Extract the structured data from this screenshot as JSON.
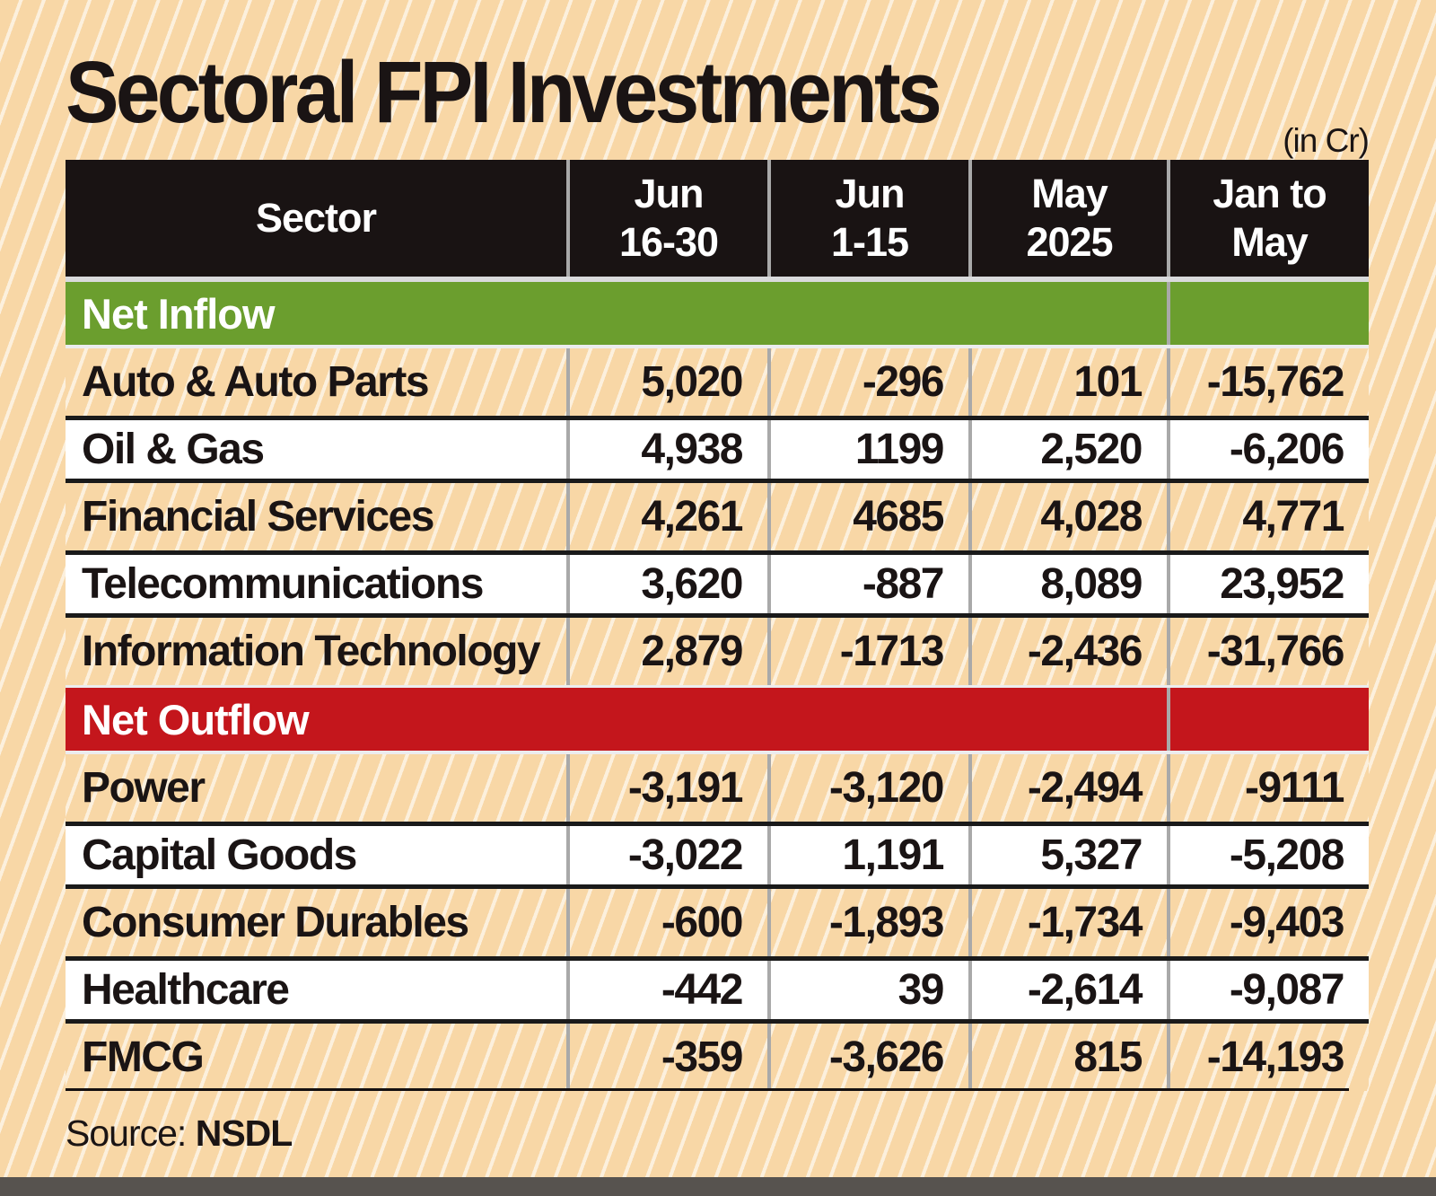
{
  "title": "Sectoral FPI Investments",
  "unit_note": "(in Cr)",
  "source": {
    "label": "Source:",
    "value": "NSDL"
  },
  "colors": {
    "background_peach": "#f8d7a6",
    "stripe": "#ffffff",
    "header_black": "#191313",
    "inflow_green": "#6b9e2e",
    "outflow_red": "#c4161c",
    "row_white": "#ffffff",
    "divider_gray": "#a9a9a9",
    "bottom_bar_gray": "#57534f",
    "text_dark": "#1a1414"
  },
  "chart_data": {
    "type": "table",
    "title": "Sectoral FPI Investments",
    "unit": "in Cr",
    "columns": [
      {
        "label": "Sector"
      },
      {
        "line1": "Jun",
        "line2": "16-30"
      },
      {
        "line1": "Jun",
        "line2": "1-15"
      },
      {
        "line1": "May",
        "line2": "2025"
      },
      {
        "line1": "Jan to",
        "line2": "May"
      }
    ],
    "sections": [
      {
        "header": "Net Inflow",
        "rows": [
          {
            "sector": "Auto & Auto Parts",
            "values": [
              "5,020",
              "-296",
              "101",
              "-15,762"
            ]
          },
          {
            "sector": "Oil & Gas",
            "values": [
              "4,938",
              "1199",
              "2,520",
              "-6,206"
            ]
          },
          {
            "sector": "Financial Services",
            "values": [
              "4,261",
              "4685",
              "4,028",
              "4,771"
            ]
          },
          {
            "sector": "Telecommunications",
            "values": [
              "3,620",
              "-887",
              "8,089",
              "23,952"
            ]
          },
          {
            "sector": "Information Technology",
            "values": [
              "2,879",
              "-1713",
              "-2,436",
              "-31,766"
            ]
          }
        ]
      },
      {
        "header": "Net Outflow",
        "rows": [
          {
            "sector": "Power",
            "values": [
              "-3,191",
              "-3,120",
              "-2,494",
              "-9111"
            ]
          },
          {
            "sector": "Capital Goods",
            "values": [
              "-3,022",
              "1,191",
              "5,327",
              "-5,208"
            ]
          },
          {
            "sector": "Consumer Durables",
            "values": [
              "-600",
              "-1,893",
              "-1,734",
              "-9,403"
            ]
          },
          {
            "sector": "Healthcare",
            "values": [
              "-442",
              "39",
              "-2,614",
              "-9,087"
            ]
          },
          {
            "sector": "FMCG",
            "values": [
              "-359",
              "-3,626",
              "815",
              "-14,193"
            ]
          }
        ]
      }
    ]
  }
}
